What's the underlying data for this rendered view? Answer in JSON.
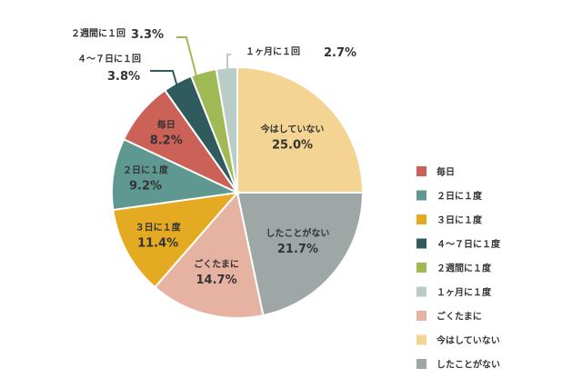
{
  "chart_data": {
    "type": "pie",
    "title": "",
    "slices": [
      {
        "name": "今はしていない",
        "value": 25.0,
        "label": "25.0%",
        "color": "#f4d493"
      },
      {
        "name": "したことがない",
        "value": 21.7,
        "label": "21.7%",
        "color": "#9ea7a6"
      },
      {
        "name": "ごくたまに",
        "value": 14.7,
        "label": "14.7%",
        "color": "#e6b3a2"
      },
      {
        "name": "３日に１度",
        "value": 11.4,
        "label": "11.4%",
        "color": "#e4aa22"
      },
      {
        "name": "２日に１度",
        "value": 9.2,
        "label": "9.2%",
        "color": "#5f9890"
      },
      {
        "name": "毎日",
        "value": 8.2,
        "label": "8.2%",
        "color": "#cc6157"
      },
      {
        "name": "４～７日に１回",
        "value": 3.8,
        "label": "3.8%",
        "color": "#2f5a5e"
      },
      {
        "name": "２週間に１回",
        "value": 3.3,
        "label": "3.3%",
        "color": "#9fba55"
      },
      {
        "name": "１ヶ月に１回",
        "value": 2.7,
        "label": "2.7%",
        "color": "#b9ccc6"
      }
    ],
    "legend": {
      "placement": "right",
      "items": [
        {
          "label": "毎日",
          "color": "#cc6157"
        },
        {
          "label": "２日に１度",
          "color": "#5f9890"
        },
        {
          "label": "３日に１度",
          "color": "#e4aa22"
        },
        {
          "label": "４～７日に１度",
          "color": "#2f5a5e"
        },
        {
          "label": "２週間に１度",
          "color": "#9fba55"
        },
        {
          "label": "１ヶ月に１度",
          "color": "#b9ccc6"
        },
        {
          "label": "ごくたまに",
          "color": "#e6b3a2"
        },
        {
          "label": "今はしていない",
          "color": "#f4d493"
        },
        {
          "label": "したことがない",
          "color": "#9ea7a6"
        }
      ]
    }
  }
}
